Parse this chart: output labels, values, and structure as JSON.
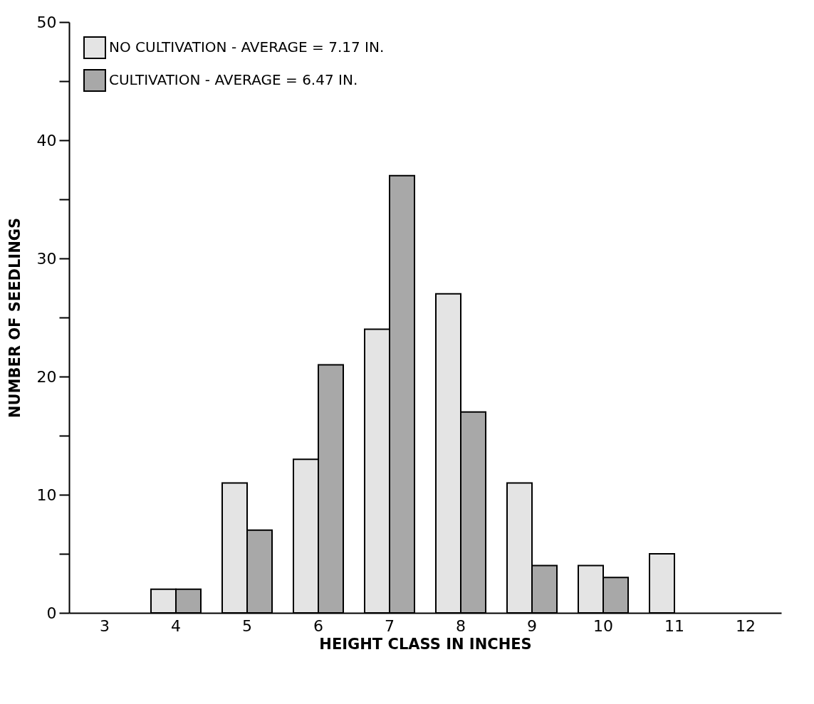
{
  "chart_data": {
    "type": "bar",
    "xlabel": "HEIGHT CLASS IN INCHES",
    "ylabel": "NUMBER OF SEEDLINGS",
    "categories": [
      "3",
      "4",
      "5",
      "6",
      "7",
      "8",
      "9",
      "10",
      "11",
      "12"
    ],
    "series": [
      {
        "name": "NO CULTIVATION - AVERAGE = 7.17 IN.",
        "color": "#e4e4e4",
        "values": [
          null,
          2,
          11,
          13,
          24,
          27,
          11,
          4,
          5,
          null
        ]
      },
      {
        "name": "CULTIVATION - AVERAGE = 6.47 IN.",
        "color": "#a8a8a8",
        "values": [
          null,
          2,
          7,
          21,
          37,
          17,
          4,
          3,
          null,
          null
        ]
      }
    ],
    "ylim": [
      0,
      50
    ],
    "yticks": [
      0,
      {
        "value": 5,
        "label": null
      },
      10,
      {
        "value": 15,
        "label": null
      },
      20,
      {
        "value": 25,
        "label": null
      },
      30,
      {
        "value": 35,
        "label": null
      },
      40,
      {
        "value": 45,
        "label": null
      },
      50
    ],
    "grid": false,
    "legend": "top left"
  }
}
